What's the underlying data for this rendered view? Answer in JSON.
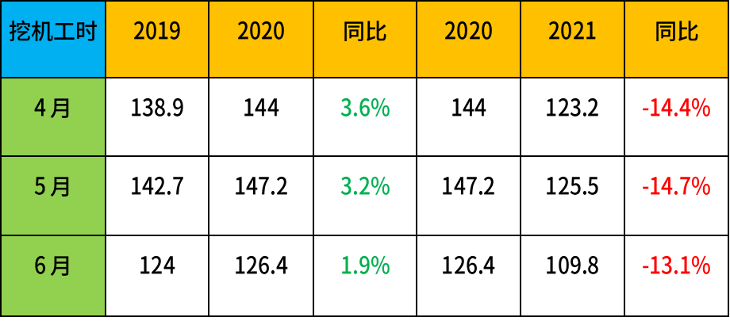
{
  "page": {
    "background": "#FFFFFF",
    "description": "Excavator working hours comparison table"
  },
  "colors": {
    "border": "#000000",
    "corner_fill": "#00B0F0",
    "header_fill": "#FFC000",
    "row_header_fill": "#92D050",
    "cell_fill": "#FFFFFF",
    "text": "#000000",
    "positive": "#00B050",
    "negative": "#FF0000"
  },
  "table": {
    "corner_header": "挖机工时",
    "columns": [
      "2019",
      "2020",
      "同比",
      "2020",
      "2021",
      "同比"
    ],
    "rows": [
      {
        "label": "4月",
        "values": [
          "138.9",
          "144",
          "3.6%",
          "144",
          "123.2",
          "-14.4%"
        ]
      },
      {
        "label": "5月",
        "values": [
          "142.7",
          "147.2",
          "3.2%",
          "147.2",
          "125.5",
          "-14.7%"
        ]
      },
      {
        "label": "6月",
        "values": [
          "124",
          "126.4",
          "1.9%",
          "126.4",
          "109.8",
          "-13.1%"
        ]
      }
    ]
  },
  "chart_data": {
    "type": "table",
    "title": "挖机工时",
    "columns": [
      "挖机工时",
      "2019",
      "2020",
      "同比",
      "2020",
      "2021",
      "同比"
    ],
    "rows": [
      [
        "4月",
        "138.9",
        "144",
        "3.6%",
        "144",
        "123.2",
        "-14.4%"
      ],
      [
        "5月",
        "142.7",
        "147.2",
        "3.2%",
        "147.2",
        "125.5",
        "-14.7%"
      ],
      [
        "6月",
        "124",
        "126.4",
        "1.9%",
        "126.4",
        "109.8",
        "-13.1%"
      ]
    ],
    "series": [
      {
        "name": "2019",
        "values": [
          138.9,
          142.7,
          124
        ]
      },
      {
        "name": "2020",
        "values": [
          144,
          147.2,
          126.4
        ]
      },
      {
        "name": "同比 2020vs2019 (%)",
        "values": [
          3.6,
          3.2,
          1.9
        ]
      },
      {
        "name": "2021",
        "values": [
          123.2,
          125.5,
          109.8
        ]
      },
      {
        "name": "同比 2021vs2020 (%)",
        "values": [
          -14.4,
          -14.7,
          -13.1
        ]
      }
    ],
    "categories": [
      "4月",
      "5月",
      "6月"
    ]
  }
}
